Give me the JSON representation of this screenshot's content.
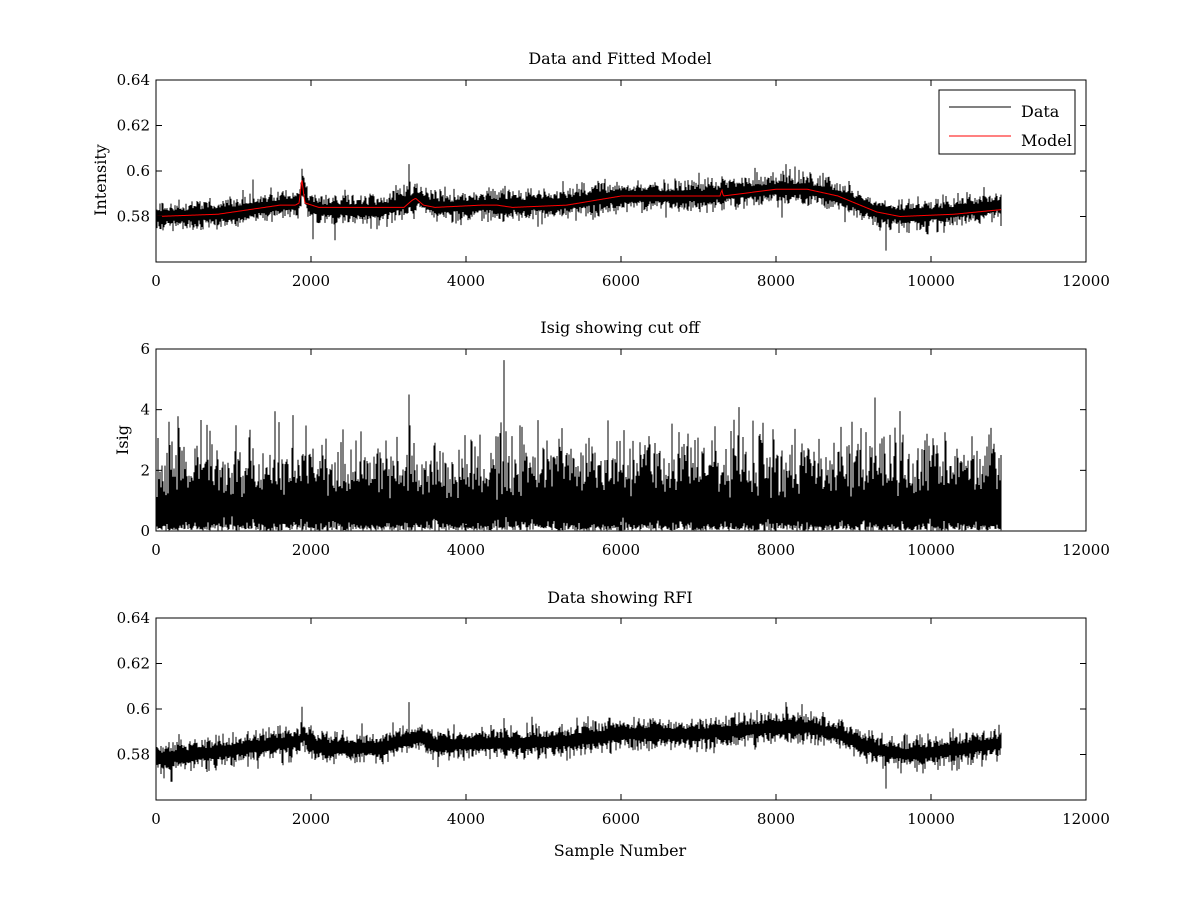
{
  "figure": {
    "background": "#ffffff"
  },
  "chart_data": [
    {
      "type": "line",
      "title": "Data and Fitted Model",
      "xlabel": "",
      "ylabel": "Intensity",
      "xlim": [
        0,
        12000
      ],
      "ylim": [
        0.56,
        0.64
      ],
      "xticks": [
        0,
        2000,
        4000,
        6000,
        8000,
        10000,
        12000
      ],
      "xtick_labels": [
        "0",
        "2000",
        "4000",
        "6000",
        "8000",
        "10000",
        "12000"
      ],
      "yticks": [
        0.58,
        0.6,
        0.62,
        0.64
      ],
      "ytick_labels": [
        "0.58",
        "0.6",
        "0.62",
        "0.64"
      ],
      "grid": false,
      "legend": {
        "position": "top-right",
        "entries": [
          "Data",
          "Model"
        ]
      },
      "series": [
        {
          "name": "Data",
          "color": "#000000",
          "kind": "noisy",
          "x_end": 10900,
          "noise_amplitude": 0.006,
          "baseline": [
            [
              0,
              0.58
            ],
            [
              800,
              0.581
            ],
            [
              1600,
              0.585
            ],
            [
              1850,
              0.586
            ],
            [
              1900,
              0.595
            ],
            [
              1960,
              0.585
            ],
            [
              2100,
              0.583
            ],
            [
              2900,
              0.583
            ],
            [
              3300,
              0.587
            ],
            [
              3400,
              0.588
            ],
            [
              3600,
              0.584
            ],
            [
              4200,
              0.585
            ],
            [
              4700,
              0.585
            ],
            [
              5300,
              0.586
            ],
            [
              6000,
              0.589
            ],
            [
              7000,
              0.589
            ],
            [
              8000,
              0.592
            ],
            [
              8400,
              0.592
            ],
            [
              8800,
              0.589
            ],
            [
              9300,
              0.582
            ],
            [
              9700,
              0.58
            ],
            [
              10300,
              0.582
            ],
            [
              10900,
              0.585
            ]
          ],
          "spikes": [
            [
              1880,
              0.601
            ],
            [
              3270,
              0.603
            ],
            [
              8130,
              0.603
            ],
            [
              9420,
              0.565
            ],
            [
              2030,
              0.57
            ]
          ]
        },
        {
          "name": "Model",
          "color": "#ff0000",
          "kind": "smooth",
          "x_end": 10900,
          "points": [
            [
              0,
              0.58
            ],
            [
              800,
              0.581
            ],
            [
              1600,
              0.585
            ],
            [
              1800,
              0.585
            ],
            [
              1850,
              0.586
            ],
            [
              1880,
              0.597
            ],
            [
              1920,
              0.586
            ],
            [
              2100,
              0.584
            ],
            [
              2900,
              0.584
            ],
            [
              3200,
              0.584
            ],
            [
              3300,
              0.587
            ],
            [
              3350,
              0.588
            ],
            [
              3450,
              0.585
            ],
            [
              3600,
              0.584
            ],
            [
              4200,
              0.585
            ],
            [
              4400,
              0.585
            ],
            [
              4600,
              0.584
            ],
            [
              5300,
              0.585
            ],
            [
              6000,
              0.589
            ],
            [
              7000,
              0.589
            ],
            [
              7280,
              0.589
            ],
            [
              7300,
              0.592
            ],
            [
              7320,
              0.589
            ],
            [
              8000,
              0.592
            ],
            [
              8400,
              0.592
            ],
            [
              8800,
              0.589
            ],
            [
              9300,
              0.582
            ],
            [
              9600,
              0.58
            ],
            [
              10300,
              0.581
            ],
            [
              10900,
              0.583
            ]
          ]
        }
      ]
    },
    {
      "type": "line",
      "title": "Isig showing cut off",
      "xlabel": "",
      "ylabel": "Isig",
      "xlim": [
        0,
        12000
      ],
      "ylim": [
        0,
        6
      ],
      "xticks": [
        0,
        2000,
        4000,
        6000,
        8000,
        10000,
        12000
      ],
      "xtick_labels": [
        "0",
        "2000",
        "4000",
        "6000",
        "8000",
        "10000",
        "12000"
      ],
      "yticks": [
        0,
        2,
        4,
        6
      ],
      "ytick_labels": [
        "0",
        "2",
        "4",
        "6"
      ],
      "grid": false,
      "series": [
        {
          "name": "Isig",
          "color": "#000000",
          "kind": "abs-noise",
          "x_end": 10900,
          "noise_amplitude": 1.0,
          "spikes": [
            [
              3270,
              4.5
            ],
            [
              9280,
              4.4
            ],
            [
              8980,
              3.6
            ],
            [
              660,
              3.5
            ],
            [
              10780,
              3.4
            ],
            [
              7810,
              3.0
            ],
            [
              300,
              3.4
            ],
            [
              3330,
              2.9
            ]
          ]
        }
      ]
    },
    {
      "type": "line",
      "title": "Data showing RFI",
      "xlabel": "Sample Number",
      "ylabel": "",
      "xlim": [
        0,
        12000
      ],
      "ylim": [
        0.56,
        0.64
      ],
      "xticks": [
        0,
        2000,
        4000,
        6000,
        8000,
        10000,
        12000
      ],
      "xtick_labels": [
        "0",
        "2000",
        "4000",
        "6000",
        "8000",
        "10000",
        "12000"
      ],
      "yticks": [
        0.58,
        0.6,
        0.62,
        0.64
      ],
      "ytick_labels": [
        "0.58",
        "0.6",
        "0.62",
        "0.64"
      ],
      "grid": false,
      "series": [
        {
          "name": "Data",
          "color": "#000000",
          "kind": "noisy",
          "x_end": 10900,
          "noise_amplitude": 0.006,
          "baseline": [
            [
              0,
              0.578
            ],
            [
              800,
              0.581
            ],
            [
              1600,
              0.585
            ],
            [
              1850,
              0.586
            ],
            [
              1900,
              0.59
            ],
            [
              1960,
              0.585
            ],
            [
              2100,
              0.583
            ],
            [
              2900,
              0.583
            ],
            [
              3300,
              0.587
            ],
            [
              3400,
              0.588
            ],
            [
              3600,
              0.584
            ],
            [
              4200,
              0.585
            ],
            [
              4700,
              0.585
            ],
            [
              5300,
              0.586
            ],
            [
              6000,
              0.589
            ],
            [
              7000,
              0.589
            ],
            [
              8000,
              0.592
            ],
            [
              8400,
              0.592
            ],
            [
              8800,
              0.589
            ],
            [
              9300,
              0.582
            ],
            [
              9700,
              0.58
            ],
            [
              10300,
              0.582
            ],
            [
              10900,
              0.585
            ]
          ],
          "spikes": [
            [
              1880,
              0.601
            ],
            [
              3270,
              0.603
            ],
            [
              8130,
              0.603
            ],
            [
              9420,
              0.565
            ],
            [
              200,
              0.568
            ]
          ]
        }
      ]
    }
  ]
}
